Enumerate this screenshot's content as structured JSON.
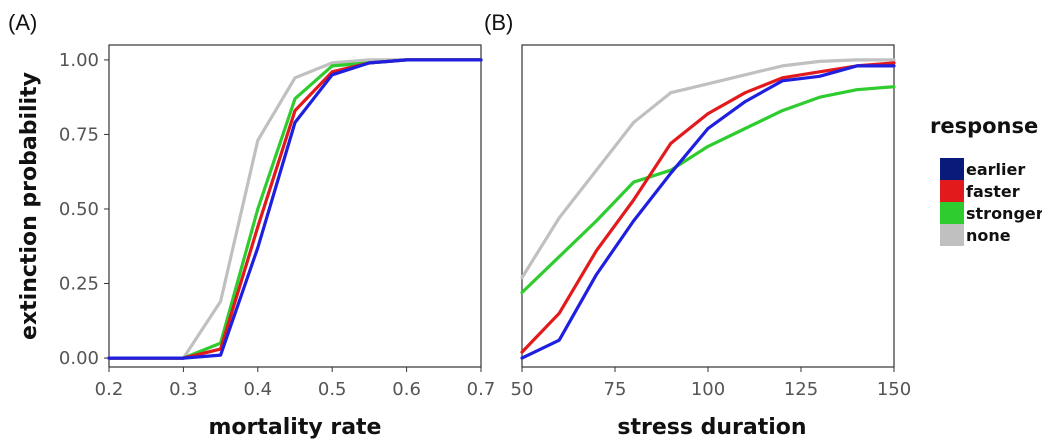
{
  "chart_data": [
    {
      "type": "line",
      "panel_label": "(A)",
      "xlabel": "mortality rate",
      "ylabel": "extinction probability",
      "xlim": [
        0.2,
        0.7
      ],
      "ylim": [
        -0.03,
        1.05
      ],
      "xticks": [
        0.2,
        0.3,
        0.4,
        0.5,
        0.6,
        0.7
      ],
      "xtick_labels": [
        "0.2",
        "0.3",
        "0.4",
        "0.5",
        "0.6",
        "0.7"
      ],
      "yticks": [
        0.0,
        0.25,
        0.5,
        0.75,
        1.0
      ],
      "ytick_labels": [
        "0.00",
        "0.25",
        "0.50",
        "0.75",
        "1.00"
      ],
      "grid": false,
      "series": [
        {
          "name": "none",
          "color": "#c0c0c0",
          "x": [
            0.2,
            0.3,
            0.35,
            0.4,
            0.45,
            0.5,
            0.55,
            0.6,
            0.65,
            0.7
          ],
          "y": [
            0,
            0,
            0.19,
            0.73,
            0.94,
            0.99,
            1.0,
            1.0,
            1.0,
            1.0
          ]
        },
        {
          "name": "stronger",
          "color": "#2ecc2e",
          "x": [
            0.2,
            0.3,
            0.35,
            0.4,
            0.45,
            0.5,
            0.55,
            0.6,
            0.65,
            0.7
          ],
          "y": [
            0,
            0,
            0.05,
            0.5,
            0.87,
            0.98,
            0.99,
            1.0,
            1.0,
            1.0
          ]
        },
        {
          "name": "faster",
          "color": "#e31a1c",
          "x": [
            0.2,
            0.3,
            0.35,
            0.4,
            0.45,
            0.5,
            0.55,
            0.6,
            0.65,
            0.7
          ],
          "y": [
            0,
            0,
            0.03,
            0.44,
            0.83,
            0.96,
            0.99,
            1.0,
            1.0,
            1.0
          ]
        },
        {
          "name": "earlier",
          "color": "#1f1fe0",
          "x": [
            0.2,
            0.3,
            0.35,
            0.4,
            0.45,
            0.5,
            0.55,
            0.6,
            0.65,
            0.7
          ],
          "y": [
            0,
            0,
            0.01,
            0.37,
            0.79,
            0.95,
            0.99,
            1.0,
            1.0,
            1.0
          ]
        }
      ]
    },
    {
      "type": "line",
      "panel_label": "(B)",
      "xlabel": "stress duration",
      "ylabel": "",
      "xlim": [
        50,
        150
      ],
      "ylim": [
        -0.03,
        1.05
      ],
      "xticks": [
        50,
        75,
        100,
        125,
        150
      ],
      "xtick_labels": [
        "50",
        "75",
        "100",
        "125",
        "150"
      ],
      "grid": false,
      "series": [
        {
          "name": "none",
          "color": "#c0c0c0",
          "x": [
            50,
            60,
            70,
            80,
            90,
            100,
            110,
            120,
            130,
            140,
            150
          ],
          "y": [
            0.27,
            0.47,
            0.63,
            0.79,
            0.89,
            0.92,
            0.95,
            0.98,
            0.995,
            1.0,
            1.0
          ]
        },
        {
          "name": "stronger",
          "color": "#2ecc2e",
          "x": [
            50,
            60,
            70,
            80,
            90,
            100,
            110,
            120,
            130,
            140,
            150
          ],
          "y": [
            0.22,
            0.34,
            0.46,
            0.59,
            0.63,
            0.71,
            0.77,
            0.83,
            0.875,
            0.9,
            0.91
          ]
        },
        {
          "name": "faster",
          "color": "#e31a1c",
          "x": [
            50,
            60,
            70,
            80,
            90,
            100,
            110,
            120,
            130,
            140,
            150
          ],
          "y": [
            0.02,
            0.15,
            0.36,
            0.53,
            0.72,
            0.82,
            0.89,
            0.94,
            0.96,
            0.98,
            0.99
          ]
        },
        {
          "name": "earlier",
          "color": "#1f1fe0",
          "x": [
            50,
            60,
            70,
            80,
            90,
            100,
            110,
            120,
            130,
            140,
            150
          ],
          "y": [
            0.0,
            0.06,
            0.28,
            0.46,
            0.62,
            0.77,
            0.86,
            0.93,
            0.945,
            0.98,
            0.98
          ]
        }
      ]
    }
  ],
  "legend": {
    "title": "response",
    "placement": "right",
    "entries": [
      {
        "label": "earlier",
        "color": "#0a1a7a"
      },
      {
        "label": "faster",
        "color": "#e31a1c"
      },
      {
        "label": "stronger",
        "color": "#2ecc2e"
      },
      {
        "label": "none",
        "color": "#c0c0c0"
      }
    ]
  }
}
